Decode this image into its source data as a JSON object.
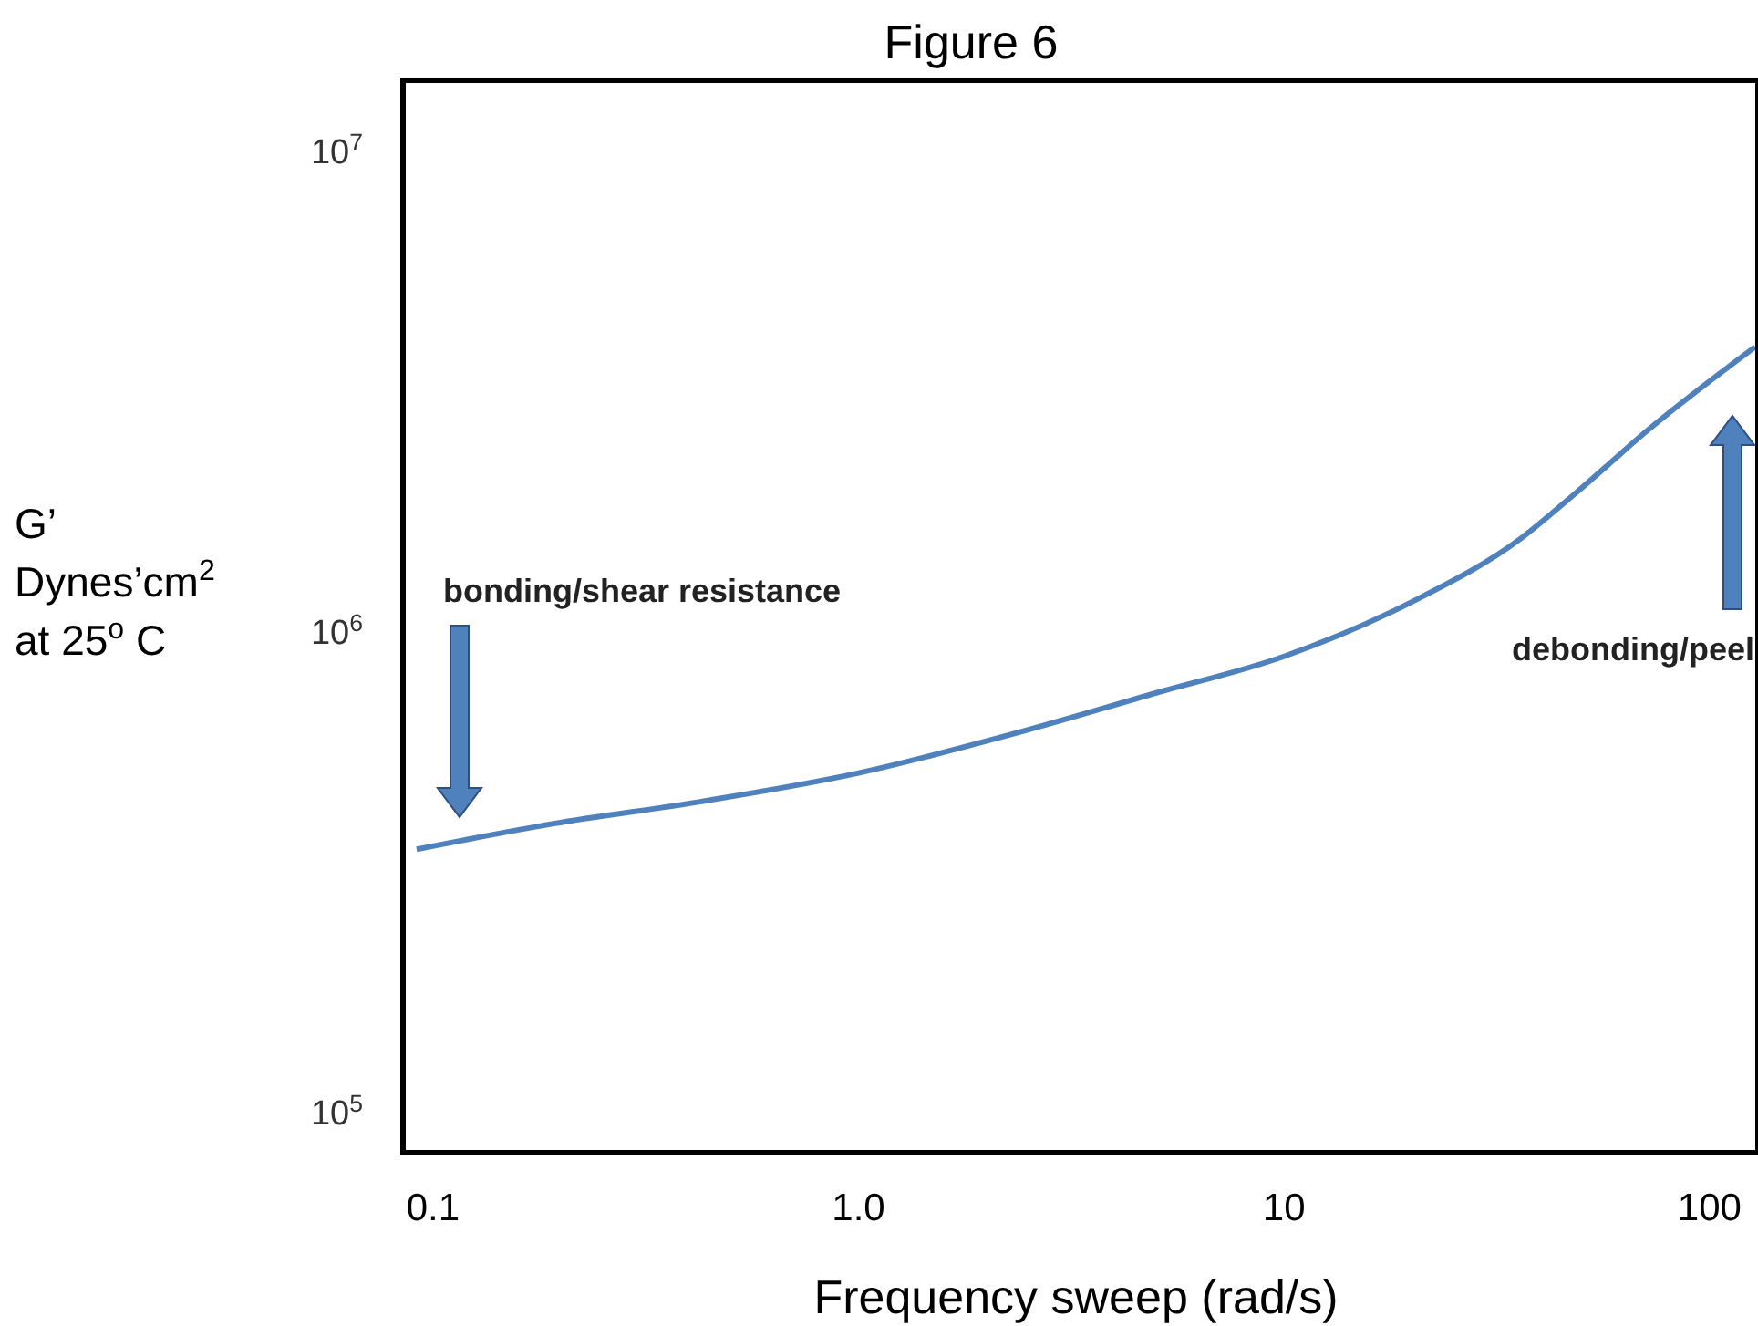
{
  "chart_data": {
    "type": "line",
    "title": "Figure 6",
    "xlabel": "Frequency sweep (rad/s)",
    "ylabel": "G’\nDynes’cm$^{2}$\nat 25$^{o}$ C",
    "log": "xy",
    "grid": false,
    "marker": "none",
    "line_style": "solid",
    "xlim": [
      0.085,
      130
    ],
    "ylim": [
      82000,
      14000000
    ],
    "xticks": [
      0.1,
      {
        "value": 1,
        "label": "1.0"
      },
      10,
      100
    ],
    "yticks": [
      {
        "value": 100000,
        "label": "10$^{5}$"
      },
      {
        "value": 1000000,
        "label": "10$^{6}$"
      },
      {
        "value": 10000000,
        "label": "10$^{7}$"
      }
    ],
    "x": [
      0.0915,
      0.192,
      0.424,
      1.0,
      2.27,
      5.01,
      10,
      20,
      36.1,
      48.6,
      72.1,
      128
    ],
    "series": [
      {
        "color": "#4f81bd",
        "values": [
          351000,
          397000,
          441000,
          506000,
          608000,
          743000,
          885000,
          1150000,
          1560000,
          1940000,
          2630000,
          3900000
        ]
      }
    ],
    "annotations": [
      "bonding/shear resistance",
      "debonding/peel"
    ]
  }
}
